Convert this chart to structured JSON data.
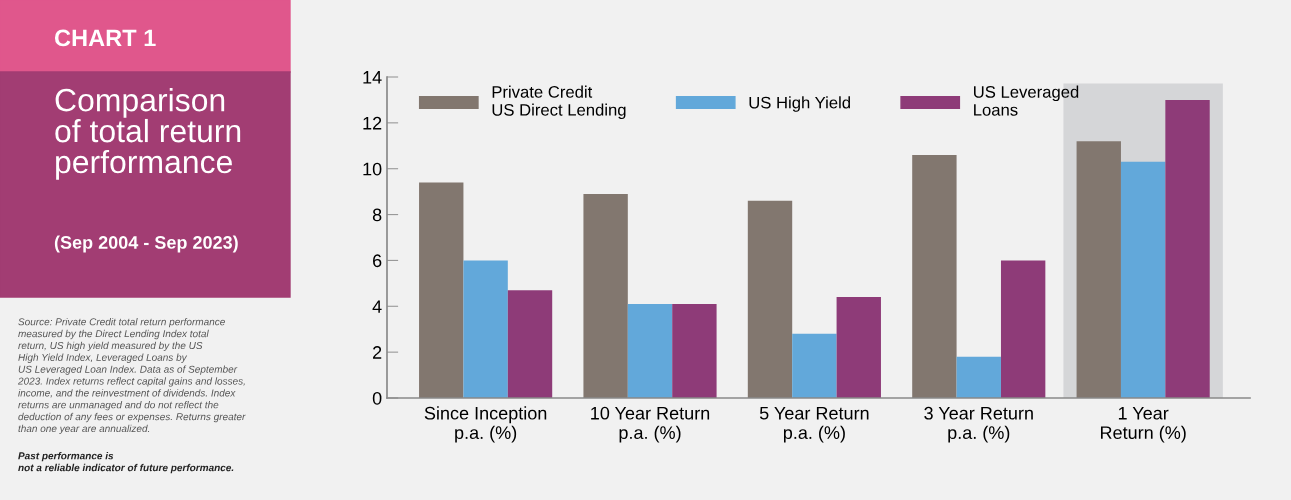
{
  "chart_data": {
    "type": "bar",
    "title": "Comparison\nof total return\nperformance",
    "subtitle": "(Sep 2004 - Sep 2023)",
    "annotations": [
      "CHART 1",
      "Source: Private Credit total return performance\nmeasured by the Direct Lending Index total\nreturn, US high yield measured by the US\nHigh Yield Index, Leveraged Loans by\nUS Leveraged Loan Index. Data as of September\n2023. Index returns reflect capital gains and losses,\nincome, and the reinvestment of dividends. Index\nreturns are unmanaged and do not reflect the\ndeduction of any fees or expenses. Returns greater\nthan one year are annualized.",
      "Past performance is\nnot a reliable indicator of future performance."
    ],
    "categories": [
      "Since Inception\np.a. (%)",
      "10 Year Return\np.a. (%)",
      "5 Year Return\np.a. (%)",
      "3 Year Return\np.a. (%)",
      "1 Year\nReturn (%)"
    ],
    "series": [
      {
        "name": "Private Credit\nUS Direct Lending",
        "color": "#82776f",
        "values": [
          9.4,
          8.9,
          8.6,
          10.6,
          11.2
        ]
      },
      {
        "name": "US High Yield",
        "color": "#62a8da",
        "values": [
          6.0,
          4.1,
          2.8,
          1.8,
          10.3
        ]
      },
      {
        "name": "US Leveraged\nLoans",
        "color": "#8e3b78",
        "values": [
          4.7,
          4.1,
          4.4,
          6.0,
          13.0
        ]
      }
    ],
    "bands": [
      {
        "axis": "x",
        "from": "1 Year\nReturn (%)",
        "to": "1 Year\nReturn (%)",
        "color": "#d5d6d8"
      }
    ],
    "ylim": [
      0,
      14
    ],
    "yticks": [
      0,
      2,
      4,
      6,
      8,
      10,
      12,
      14
    ],
    "grid": false,
    "legend": "top"
  }
}
